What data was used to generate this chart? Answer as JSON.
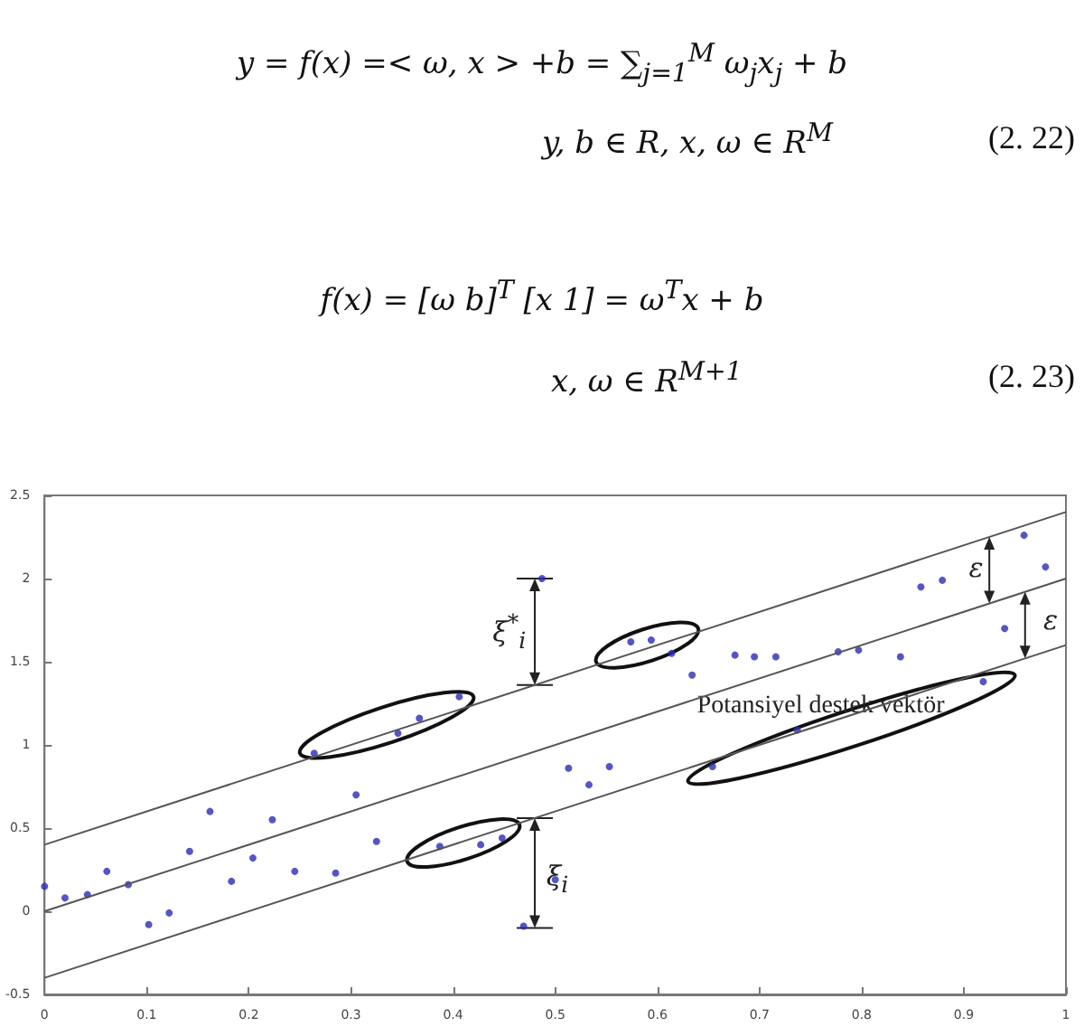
{
  "chart_data": {
    "type": "scatter",
    "annotations": [
      "y = f(x) =< ω, x > +b = ∑$_{j=1}$$^{M}$ ω$_{j}$x$_{j}$ + b",
      "y, b  ∈ R, x, ω ∈ R$^{M}$",
      "(2. 22)",
      "f(x) = [ω b]$^{T}$ [x 1] =  ω$^{T}$x + b",
      "x, ω  ∈  R$^{M+1}$",
      "(2. 23)",
      "ξ$^{*}$$_{i}$",
      "ξ$_{i}$",
      "ε",
      "ε",
      "Potansiyel destek vektör"
    ],
    "xlim": [
      0,
      1
    ],
    "xticks": [
      0,
      0.1,
      0.2,
      0.3,
      0.4,
      0.5,
      0.6,
      0.7,
      0.8,
      0.9,
      1
    ],
    "ylim": [
      -0.5,
      2.5
    ],
    "yticks": [
      -0.5,
      0,
      0.5,
      1,
      1.5,
      2,
      2.5
    ],
    "grid": false,
    "marker": "circle",
    "series": [
      {
        "type": "line",
        "color": "#555555",
        "x": [
          0,
          1
        ],
        "values": [
          0.4,
          2.4
        ],
        "marker": "none"
      },
      {
        "type": "line",
        "color": "#555555",
        "x": [
          0,
          1
        ],
        "values": [
          0,
          2
        ],
        "marker": "none"
      },
      {
        "type": "line",
        "color": "#555555",
        "x": [
          0,
          1
        ],
        "values": [
          -0.4,
          1.6
        ],
        "marker": "none"
      },
      {
        "type": "scatter",
        "color": "#2a2ab8",
        "x": [
          0,
          0.02,
          0.042,
          0.061,
          0.082,
          0.102,
          0.122,
          0.142,
          0.162,
          0.183,
          0.204,
          0.223,
          0.245,
          0.264,
          0.285,
          0.305,
          0.325,
          0.346,
          0.367,
          0.387,
          0.406,
          0.427,
          0.448,
          0.469,
          0.487,
          0.5,
          0.513,
          0.533,
          0.553,
          0.574,
          0.594,
          0.614,
          0.634,
          0.654,
          0.676,
          0.695,
          0.716,
          0.737,
          0.777,
          0.797,
          0.838,
          0.858,
          0.879,
          0.919,
          0.94,
          0.959,
          0.98
        ],
        "values": [
          0.15,
          0.08,
          0.1,
          0.24,
          0.16,
          -0.08,
          -0.01,
          0.36,
          0.6,
          0.18,
          0.32,
          0.55,
          0.24,
          0.95,
          0.23,
          0.7,
          0.42,
          1.07,
          1.16,
          0.39,
          1.29,
          0.4,
          0.44,
          -0.09,
          2.0,
          0.19,
          0.86,
          0.76,
          0.87,
          1.62,
          1.63,
          1.55,
          1.42,
          0.87,
          1.54,
          1.53,
          1.53,
          1.09,
          1.56,
          1.57,
          1.53,
          1.95,
          1.99,
          1.38,
          1.7,
          2.26,
          2.07
        ]
      }
    ]
  }
}
